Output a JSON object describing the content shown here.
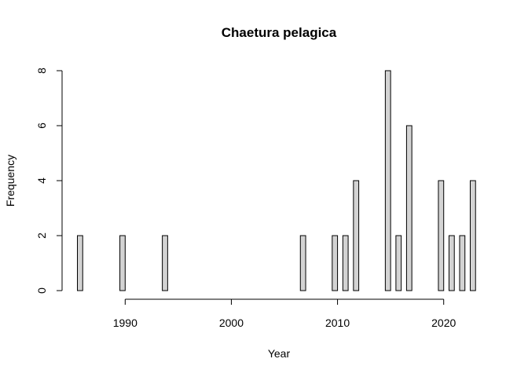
{
  "chart_data": {
    "type": "bar",
    "title": "Chaetura pelagica",
    "xlabel": "Year",
    "ylabel": "Frequency",
    "x_ticks": [
      1990,
      2000,
      2010,
      2020
    ],
    "y_ticks": [
      0,
      2,
      4,
      6,
      8
    ],
    "xlim": [
      1985.5,
      2023.5
    ],
    "ylim": [
      0,
      8
    ],
    "grid": false,
    "bar_color": "#d3d3d3",
    "categories": [
      1986,
      1987,
      1988,
      1989,
      1990,
      1991,
      1992,
      1993,
      1994,
      1995,
      1996,
      1997,
      1998,
      1999,
      2000,
      2001,
      2002,
      2003,
      2004,
      2005,
      2006,
      2007,
      2008,
      2009,
      2010,
      2011,
      2012,
      2013,
      2014,
      2015,
      2016,
      2017,
      2018,
      2019,
      2020,
      2021,
      2022,
      2023
    ],
    "values": [
      2,
      0,
      0,
      0,
      2,
      0,
      0,
      0,
      2,
      0,
      0,
      0,
      0,
      0,
      0,
      0,
      0,
      0,
      0,
      0,
      0,
      2,
      0,
      0,
      2,
      2,
      4,
      0,
      0,
      8,
      2,
      6,
      0,
      0,
      4,
      2,
      2,
      4
    ]
  }
}
